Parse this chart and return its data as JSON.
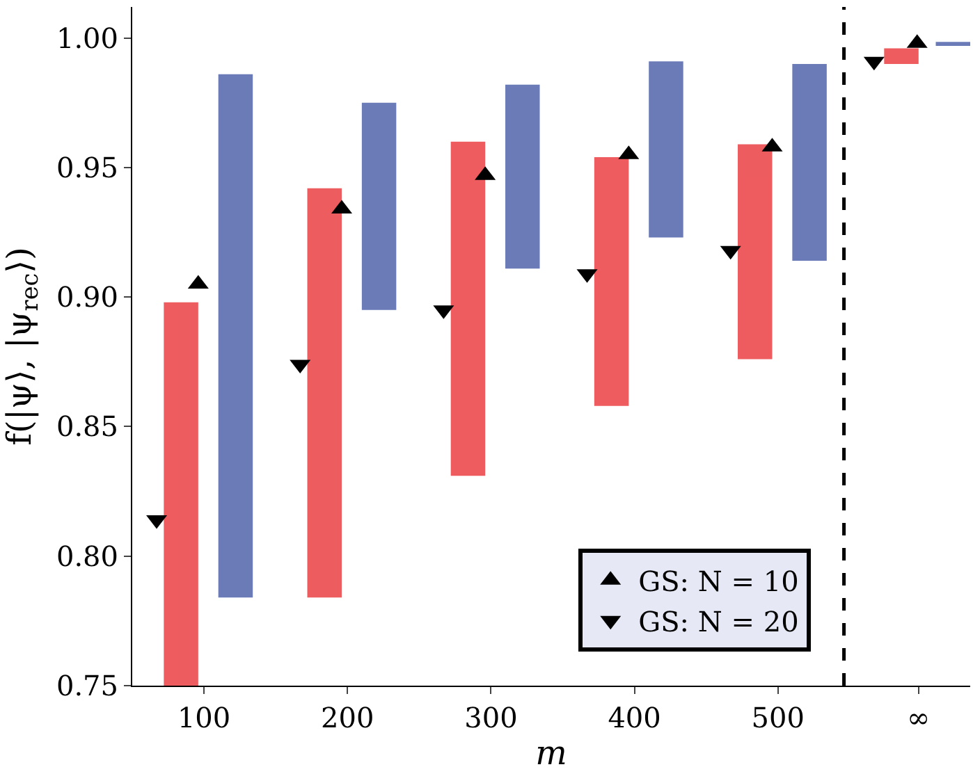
{
  "chart_data": {
    "type": "scatter",
    "xlabel": "m",
    "ylabel": "f(|ψ⟩, |ψ$_{rec}$⟩)",
    "xlim": [
      50,
      634
    ],
    "xticks": [
      100,
      200,
      300,
      400,
      500,
      {
        "value": 598,
        "label": "∞"
      }
    ],
    "ylim": [
      0.75,
      1.012
    ],
    "yticks": [
      {
        "value": 0.75,
        "label": "0.75"
      },
      {
        "value": 0.8,
        "label": "0.80"
      },
      {
        "value": 0.85,
        "label": "0.85"
      },
      {
        "value": 0.9,
        "label": "0.90"
      },
      {
        "value": 0.95,
        "label": "0.95"
      },
      {
        "value": 1.0,
        "label": "1.00"
      }
    ],
    "legend": "bottom right",
    "ref_lines": [
      {
        "axis": "x",
        "value": 546,
        "line_style": "dashed",
        "color": "#000000"
      }
    ],
    "series": [
      {
        "type": "bar",
        "color": "#e8262a",
        "x": [
          84,
          184,
          284,
          384,
          484,
          586
        ],
        "base": [
          0.75,
          0.784,
          0.831,
          0.858,
          0.876,
          0.99
        ],
        "values": [
          0.148,
          0.158,
          0.129,
          0.096,
          0.083,
          0.006
        ]
      },
      {
        "type": "bar",
        "color": "#3a4fa0",
        "x": [
          122,
          222,
          322,
          422,
          522,
          622
        ],
        "base": [
          0.784,
          0.895,
          0.911,
          0.923,
          0.914,
          0.9975
        ],
        "values": [
          0.202,
          0.08,
          0.071,
          0.068,
          0.076,
          0.001
        ]
      },
      {
        "name": "GS: N = 10",
        "color": "#000000",
        "marker": "triangle-up",
        "x": [
          96,
          196,
          296,
          396,
          496,
          597
        ],
        "values": [
          0.905,
          0.934,
          0.947,
          0.955,
          0.958,
          0.998
        ]
      },
      {
        "name": "GS: N = 20",
        "color": "#000000",
        "marker": "triangle-down",
        "x": [
          67,
          167,
          267,
          367,
          467,
          567
        ],
        "values": [
          0.814,
          0.874,
          0.895,
          0.909,
          0.918,
          0.991
        ]
      }
    ]
  }
}
